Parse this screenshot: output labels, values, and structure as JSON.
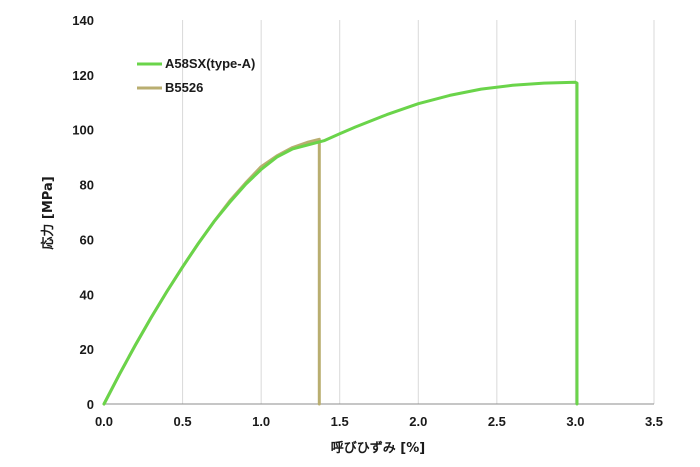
{
  "chart_data": {
    "type": "line",
    "title": "",
    "xlabel": "呼びひずみ [%]",
    "ylabel": "応力 [MPa]",
    "xlim": [
      0,
      3.5
    ],
    "ylim": [
      0,
      140
    ],
    "xticks": [
      "0.0",
      "0.5",
      "1.0",
      "1.5",
      "2.0",
      "2.5",
      "3.0",
      "3.5"
    ],
    "yticks": [
      "0",
      "20",
      "40",
      "60",
      "80",
      "100",
      "120",
      "140"
    ],
    "grid": "vertical",
    "legend_position": "top-left",
    "series": [
      {
        "name": "A58SX(type-A)",
        "color": "#6ad44a",
        "x": [
          0,
          0.1,
          0.2,
          0.3,
          0.4,
          0.5,
          0.6,
          0.7,
          0.8,
          0.9,
          1.0,
          1.1,
          1.2,
          1.3,
          1.4,
          1.5,
          1.6,
          1.8,
          2.0,
          2.2,
          2.4,
          2.6,
          2.8,
          3.0,
          3.01,
          3.01
        ],
        "y": [
          0,
          11,
          21.5,
          31.5,
          41,
          50,
          58.5,
          66.5,
          73.5,
          80,
          85.5,
          90,
          93,
          94.5,
          96,
          98.5,
          101,
          105.5,
          109.5,
          112.5,
          114.8,
          116.2,
          117,
          117.3,
          117,
          0
        ]
      },
      {
        "name": "B5526",
        "color": "#b9ae70",
        "x": [
          0,
          0.1,
          0.2,
          0.3,
          0.4,
          0.5,
          0.6,
          0.7,
          0.8,
          0.9,
          1.0,
          1.1,
          1.2,
          1.3,
          1.37,
          1.37
        ],
        "y": [
          0,
          11,
          21.5,
          31.5,
          41,
          50,
          58.5,
          66.5,
          74,
          80.5,
          86.5,
          90.5,
          93.5,
          95.5,
          96.5,
          0
        ]
      }
    ]
  }
}
